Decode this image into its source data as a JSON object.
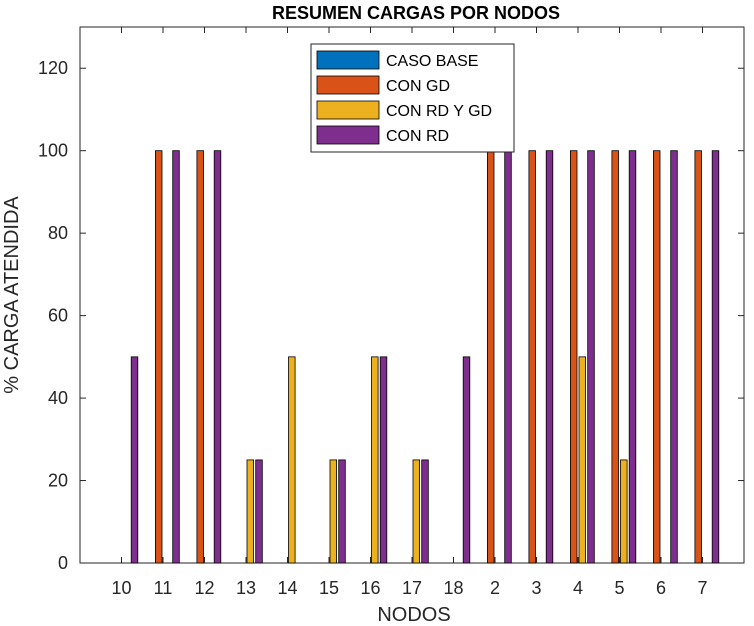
{
  "chart_data": {
    "type": "bar",
    "title": "RESUMEN CARGAS POR NODOS",
    "xlabel": "NODOS",
    "ylabel": "% CARGA ATENDIDA",
    "ylim": [
      0,
      130
    ],
    "yticks": [
      0,
      20,
      40,
      60,
      80,
      100,
      120
    ],
    "grid": false,
    "legend_position": "top-center",
    "categories": [
      "10",
      "11",
      "12",
      "13",
      "14",
      "15",
      "16",
      "17",
      "18",
      "2",
      "3",
      "4",
      "5",
      "6",
      "7"
    ],
    "series": [
      {
        "name": "CASO BASE",
        "color": "#0072BD",
        "values": [
          0,
          0,
          0,
          0,
          0,
          0,
          0,
          0,
          0,
          0,
          0,
          0,
          0,
          0,
          0
        ]
      },
      {
        "name": "CON GD",
        "color": "#D95319",
        "values": [
          0,
          100,
          100,
          0,
          0,
          0,
          0,
          0,
          0,
          100,
          100,
          100,
          100,
          100,
          100
        ]
      },
      {
        "name": "CON RD Y GD",
        "color": "#EDB120",
        "values": [
          0,
          0,
          0,
          25,
          50,
          25,
          50,
          25,
          0,
          0,
          0,
          50,
          25,
          0,
          0
        ]
      },
      {
        "name": "CON RD",
        "color": "#7E2F8E",
        "values": [
          50,
          100,
          100,
          25,
          0,
          25,
          50,
          25,
          50,
          100,
          100,
          100,
          100,
          100,
          100
        ]
      }
    ]
  }
}
